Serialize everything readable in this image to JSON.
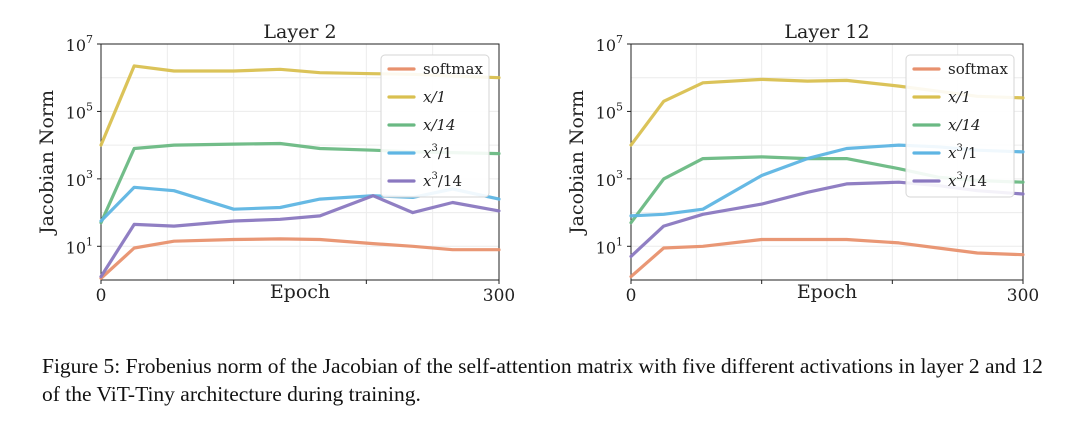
{
  "chart_data": [
    {
      "type": "line",
      "title": "Layer 2",
      "xlabel": "Epoch",
      "ylabel": "Jacobian Norm",
      "yscale": "log",
      "xlim": [
        0,
        300
      ],
      "ylim_log10": [
        0,
        7
      ],
      "x_tick_labels": [
        "0",
        "300"
      ],
      "y_ticks": [
        {
          "base": "10",
          "exp": "1",
          "log": 1
        },
        {
          "base": "10",
          "exp": "3",
          "log": 3
        },
        {
          "base": "10",
          "exp": "5",
          "log": 5
        },
        {
          "base": "10",
          "exp": "7",
          "log": 7
        }
      ],
      "legend_position": "top-right",
      "x": [
        0,
        25,
        55,
        100,
        135,
        165,
        205,
        235,
        265,
        300
      ],
      "series": [
        {
          "name": "softmax",
          "color": "#e8916e",
          "log10": [
            0.05,
            0.95,
            1.15,
            1.2,
            1.22,
            1.2,
            1.08,
            1.0,
            0.9,
            0.9
          ]
        },
        {
          "name": "x/1",
          "color": "#d9c050",
          "log10": [
            4.0,
            6.35,
            6.2,
            6.2,
            6.25,
            6.15,
            6.12,
            6.1,
            6.05,
            6.0
          ]
        },
        {
          "name": "x/14",
          "color": "#6ab983",
          "log10": [
            1.7,
            3.9,
            4.0,
            4.03,
            4.05,
            3.9,
            3.85,
            3.8,
            3.78,
            3.75
          ]
        },
        {
          "name": "x^3/1",
          "color": "#5eb5e3",
          "log10": [
            1.75,
            2.75,
            2.65,
            2.1,
            2.15,
            2.4,
            2.5,
            2.45,
            2.7,
            2.4
          ]
        },
        {
          "name": "x^3/14",
          "color": "#8a78c0",
          "log10": [
            0.1,
            1.65,
            1.6,
            1.75,
            1.8,
            1.9,
            2.5,
            2.0,
            2.3,
            2.05
          ]
        }
      ]
    },
    {
      "type": "line",
      "title": "Layer 12",
      "xlabel": "Epoch",
      "ylabel": "Jacobian Norm",
      "yscale": "log",
      "xlim": [
        0,
        300
      ],
      "ylim_log10": [
        0,
        7
      ],
      "x_tick_labels": [
        "0",
        "300"
      ],
      "y_ticks": [
        {
          "base": "10",
          "exp": "1",
          "log": 1
        },
        {
          "base": "10",
          "exp": "3",
          "log": 3
        },
        {
          "base": "10",
          "exp": "5",
          "log": 5
        },
        {
          "base": "10",
          "exp": "7",
          "log": 7
        }
      ],
      "legend_position": "top-right",
      "x": [
        0,
        25,
        55,
        100,
        135,
        165,
        205,
        235,
        265,
        300
      ],
      "series": [
        {
          "name": "softmax",
          "color": "#e8916e",
          "log10": [
            0.1,
            0.95,
            1.0,
            1.2,
            1.2,
            1.2,
            1.1,
            0.95,
            0.8,
            0.75
          ]
        },
        {
          "name": "x/1",
          "color": "#d9c050",
          "log10": [
            4.0,
            5.3,
            5.85,
            5.95,
            5.9,
            5.92,
            5.75,
            5.6,
            5.45,
            5.4
          ]
        },
        {
          "name": "x/14",
          "color": "#6ab983",
          "log10": [
            1.7,
            3.0,
            3.6,
            3.65,
            3.6,
            3.6,
            3.3,
            3.05,
            2.95,
            2.9
          ]
        },
        {
          "name": "x^3/1",
          "color": "#5eb5e3",
          "log10": [
            1.9,
            1.95,
            2.1,
            3.1,
            3.6,
            3.9,
            4.0,
            3.95,
            3.85,
            3.8
          ]
        },
        {
          "name": "x^3/14",
          "color": "#8a78c0",
          "log10": [
            0.7,
            1.6,
            1.95,
            2.25,
            2.6,
            2.85,
            2.9,
            2.8,
            2.65,
            2.55
          ]
        }
      ]
    }
  ],
  "legend_labels": [
    {
      "text": "softmax",
      "sup": ""
    },
    {
      "text": "x/1",
      "sup": ""
    },
    {
      "text": "x/14",
      "sup": ""
    },
    {
      "text": "x",
      "sup": "3",
      "rest": "/1"
    },
    {
      "text": "x",
      "sup": "3",
      "rest": "/14"
    }
  ],
  "caption": "Figure 5: Frobenius norm of the Jacobian of the self-attention matrix with five different activations in layer 2 and 12 of the ViT-Tiny architecture during training."
}
